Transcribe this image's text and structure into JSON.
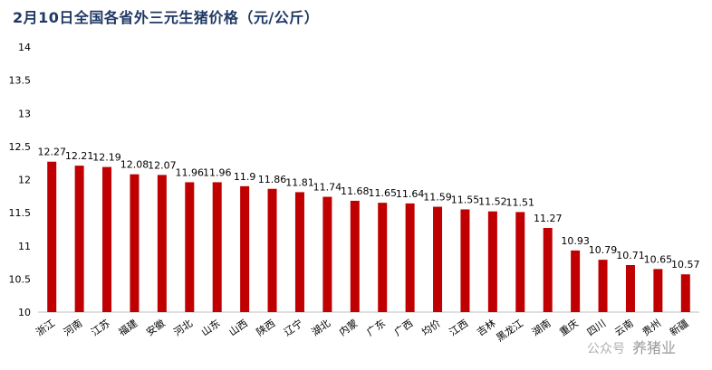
{
  "title": "2月10日全国各省外三元生猪价格（元/公斤）",
  "watermark": {
    "source": "公众号",
    "brand": "养猪业"
  },
  "colors": {
    "bar": "#c00000",
    "axis": "#bfbfbf",
    "text": "#000000",
    "title": "#1f3864"
  },
  "chart_data": {
    "type": "bar",
    "title": "2月10日全国各省外三元生猪价格（元/公斤）",
    "xlabel": "",
    "ylabel": "",
    "ylim": [
      10,
      14
    ],
    "yticks": [
      "10",
      "10.5",
      "11",
      "11.5",
      "12",
      "12.5",
      "13",
      "13.5",
      "14"
    ],
    "grid": false,
    "legend": "none",
    "categories": [
      "浙江",
      "河南",
      "江苏",
      "福建",
      "安徽",
      "河北",
      "山东",
      "山西",
      "陕西",
      "辽宁",
      "湖北",
      "内蒙",
      "广东",
      "广西",
      "均价",
      "江西",
      "吉林",
      "黑龙江",
      "湖南",
      "重庆",
      "四川",
      "云南",
      "贵州",
      "新疆"
    ],
    "values": [
      12.27,
      12.21,
      12.19,
      12.08,
      12.07,
      11.96,
      11.96,
      11.9,
      11.86,
      11.81,
      11.74,
      11.68,
      11.65,
      11.64,
      11.59,
      11.55,
      11.52,
      11.51,
      11.27,
      10.93,
      10.79,
      10.71,
      10.65,
      10.57
    ],
    "value_labels": [
      "12.27",
      "12.21",
      "12.19",
      "12.08",
      "12.07",
      "11.96",
      "11.96",
      "11.9",
      "11.86",
      "11.81",
      "11.74",
      "11.68",
      "11.65",
      "11.64",
      "11.59",
      "11.55",
      "11.52",
      "11.51",
      "11.27",
      "10.93",
      "10.79",
      "10.71",
      "10.65",
      "10.57"
    ]
  }
}
